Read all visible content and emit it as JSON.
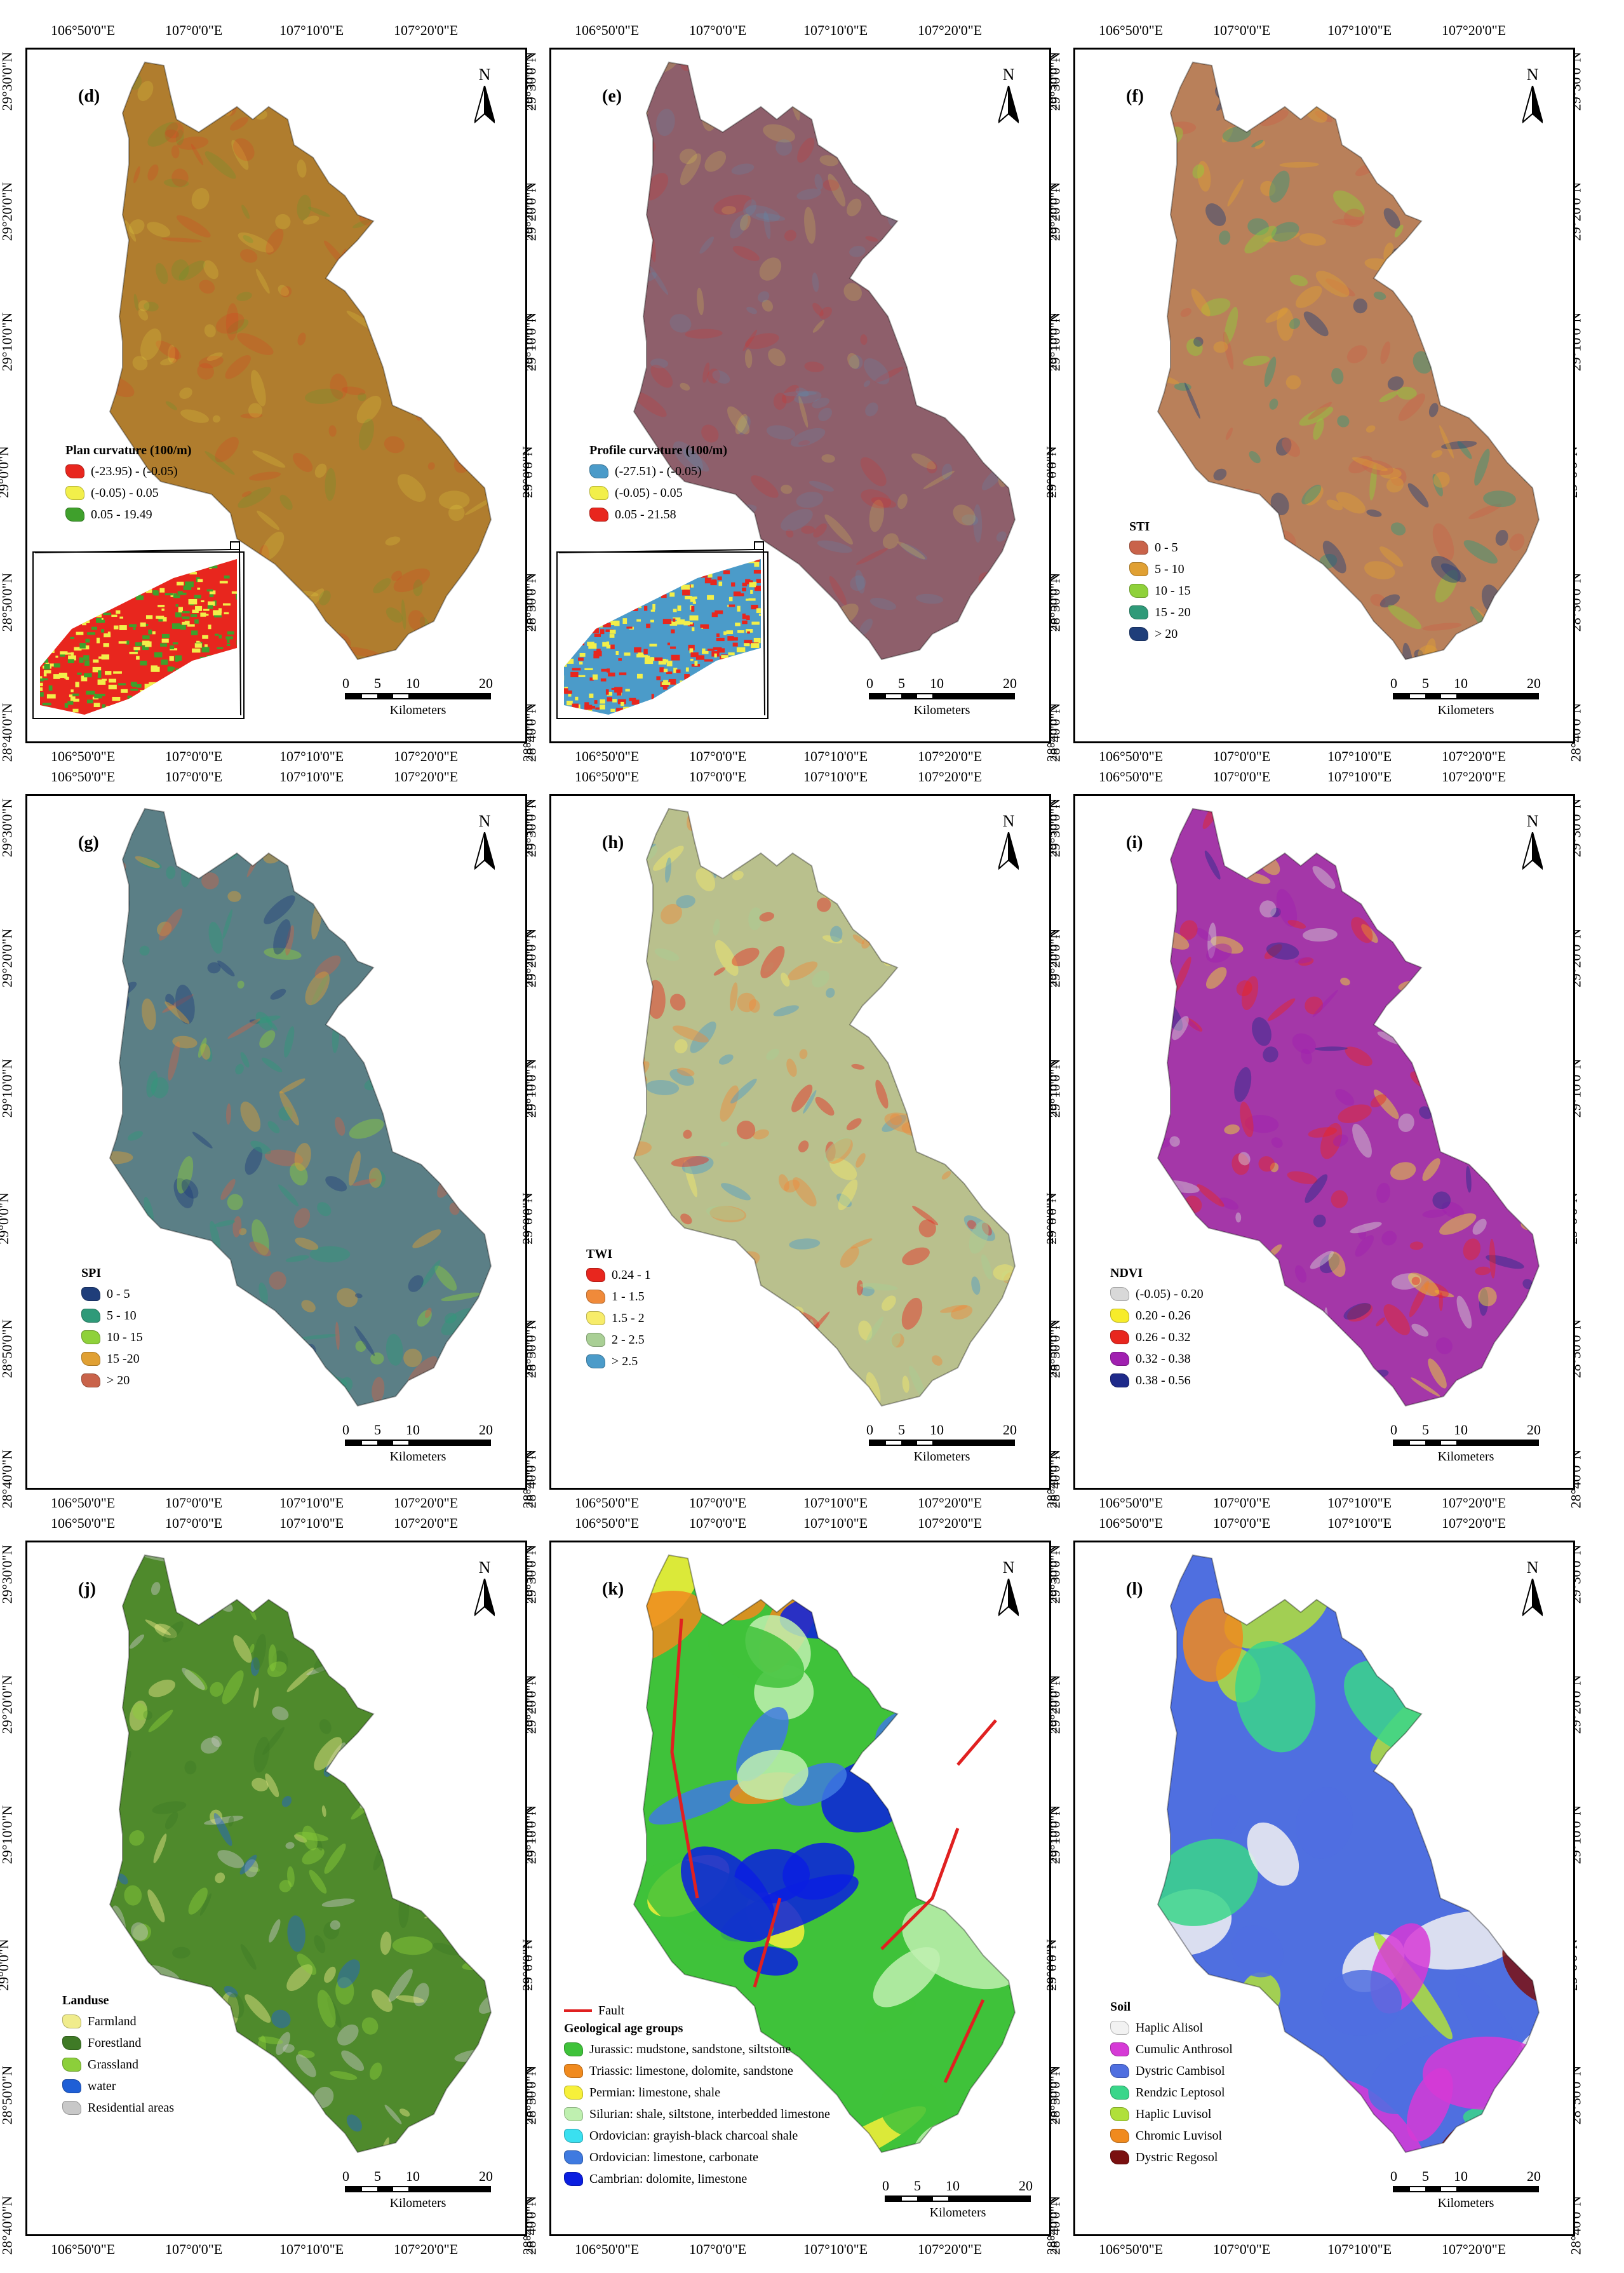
{
  "coords": {
    "lon_labels": [
      "106°50'0\"E",
      "107°0'0\"E",
      "107°10'0\"E",
      "107°20'0\"E"
    ],
    "lat_labels": [
      "29°30'0\"N",
      "29°20'0\"N",
      "29°10'0\"N",
      "29°0'0\"N",
      "28°50'0\"N",
      "28°40'0\"N"
    ]
  },
  "north_label": "N",
  "scale": {
    "ticks": [
      "0",
      "5",
      "10",
      "20"
    ],
    "unit": "Kilometers"
  },
  "panels": [
    {
      "id": "d",
      "label": "(d)",
      "base_color": "#b07d2e",
      "legend_title": "Plan curvature (100/m)",
      "legend": [
        {
          "label": "(-23.95) - (-0.05)",
          "color": "#e8261e"
        },
        {
          "label": "(-0.05) - 0.05",
          "color": "#f2ef4a"
        },
        {
          "label": "0.05 - 19.49",
          "color": "#3fa02c"
        }
      ],
      "inset_colors": [
        "#e8261e",
        "#3fa02c",
        "#f2ef4a"
      ]
    },
    {
      "id": "e",
      "label": "(e)",
      "base_color": "#8e5f6b",
      "legend_title": "Profile curvature (100/m)",
      "legend": [
        {
          "label": "(-27.51) - (-0.05)",
          "color": "#4b9bc9"
        },
        {
          "label": "(-0.05) - 0.05",
          "color": "#f2ef4a"
        },
        {
          "label": "0.05 - 21.58",
          "color": "#e8261e"
        }
      ],
      "inset_colors": [
        "#4b9bc9",
        "#e8261e",
        "#f2ef4a"
      ]
    },
    {
      "id": "f",
      "label": "(f)",
      "base_color": "#b9805a",
      "legend_title": "STI",
      "legend": [
        {
          "label": "0 - 5",
          "color": "#c9634a"
        },
        {
          "label": "5 - 10",
          "color": "#e0a033"
        },
        {
          "label": "10 - 15",
          "color": "#8fd13a"
        },
        {
          "label": "15 - 20",
          "color": "#2f9a79"
        },
        {
          "label": "> 20",
          "color": "#1f3e7a"
        }
      ]
    },
    {
      "id": "g",
      "label": "(g)",
      "base_color": "#5b7f86",
      "legend_title": "SPI",
      "legend": [
        {
          "label": "0 - 5",
          "color": "#1f3e7a"
        },
        {
          "label": "5 - 10",
          "color": "#2f9a79"
        },
        {
          "label": "10 - 15",
          "color": "#8fd13a"
        },
        {
          "label": "15 -20",
          "color": "#e0a033"
        },
        {
          "label": "> 20",
          "color": "#c9634a"
        }
      ]
    },
    {
      "id": "h",
      "label": "(h)",
      "base_color": "#b9c08d",
      "legend_title": "TWI",
      "legend": [
        {
          "label": "0.24 - 1",
          "color": "#e8261e"
        },
        {
          "label": "1 - 1.5",
          "color": "#f08a3a"
        },
        {
          "label": "1.5 - 2",
          "color": "#f7ec6a"
        },
        {
          "label": "2 - 2.5",
          "color": "#a9cf95"
        },
        {
          "label": "> 2.5",
          "color": "#4b9bc9"
        }
      ]
    },
    {
      "id": "i",
      "label": "(i)",
      "base_color": "#a437a8",
      "legend_title": "NDVI",
      "legend": [
        {
          "label": "(-0.05) - 0.20",
          "color": "#d8d8d8"
        },
        {
          "label": "0.20 - 0.26",
          "color": "#f7ec2a"
        },
        {
          "label": "0.26 - 0.32",
          "color": "#e8261e"
        },
        {
          "label": "0.32 - 0.38",
          "color": "#a020b0"
        },
        {
          "label": "0.38 - 0.56",
          "color": "#1e2a8a"
        }
      ]
    },
    {
      "id": "j",
      "label": "(j)",
      "base_color": "#4f8a2c",
      "legend_title": "Landuse",
      "legend": [
        {
          "label": "Farmland",
          "color": "#f0ec8c"
        },
        {
          "label": "Forestland",
          "color": "#3f7a26"
        },
        {
          "label": "Grassland",
          "color": "#8ccf3a"
        },
        {
          "label": "water",
          "color": "#1f5fd6"
        },
        {
          "label": "Residential areas",
          "color": "#c8c8c8"
        }
      ]
    },
    {
      "id": "k",
      "label": "(k)",
      "base_color": "#3fc23a",
      "fault_label": "Fault",
      "fault_color": "#e02020",
      "legend_title": "Geological age groups",
      "legend": [
        {
          "label": "Jurassic: mudstone, sandstone, siltstone",
          "color": "#3fc23a"
        },
        {
          "label": "Triassic: limestone, dolomite, sandstone",
          "color": "#f08a1e"
        },
        {
          "label": "Permian:  limestone, shale",
          "color": "#f7f03a"
        },
        {
          "label": "Silurian: shale, siltstone, interbedded limestone",
          "color": "#bff0b0"
        },
        {
          "label": "Ordovician: grayish-black charcoal shale",
          "color": "#3ae0f0"
        },
        {
          "label": "Ordovician: limestone, carbonate",
          "color": "#3f7ae0"
        },
        {
          "label": "Cambrian: dolomite, limestone",
          "color": "#0a1ee0"
        }
      ]
    },
    {
      "id": "l",
      "label": "(l)",
      "base_color": "#4f6fe0",
      "legend_title": "Soil",
      "legend": [
        {
          "label": "Haplic Alisol",
          "color": "#f2f2f2"
        },
        {
          "label": "Cumulic Anthrosol",
          "color": "#d63ad6"
        },
        {
          "label": "Dystric Cambisol",
          "color": "#4f6fe0"
        },
        {
          "label": "Rendzic Leptosol",
          "color": "#3ad68a"
        },
        {
          "label": "Haplic Luvisol",
          "color": "#b0e03a"
        },
        {
          "label": "Chromic Luvisol",
          "color": "#f08a1e"
        },
        {
          "label": "Dystric Regosol",
          "color": "#7a1010"
        }
      ]
    }
  ]
}
